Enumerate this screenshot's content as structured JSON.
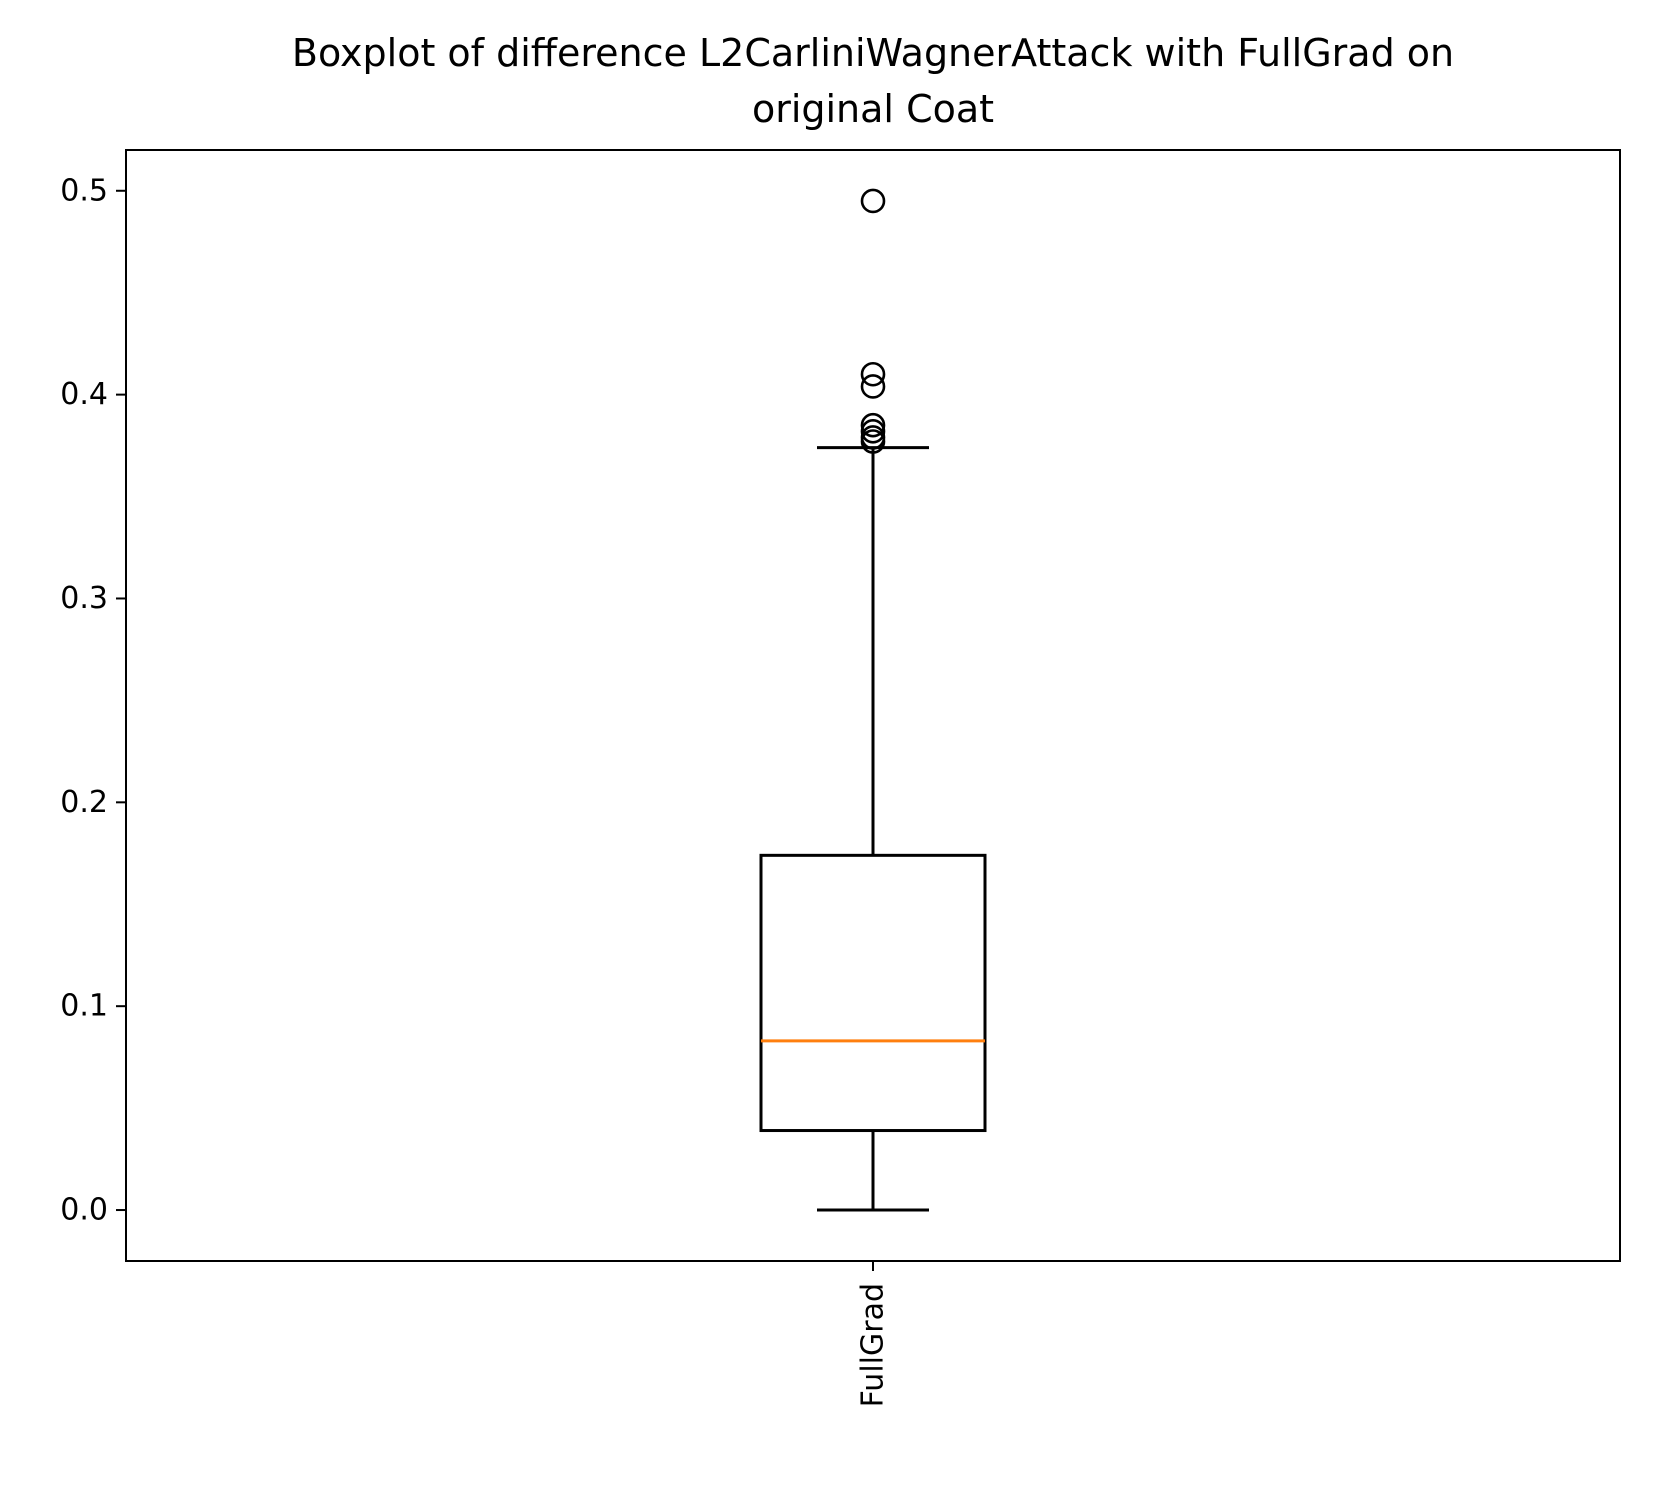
{
  "chart_data": {
    "type": "boxplot",
    "title": "Boxplot of difference L2CarliniWagnerAttack with FullGrad on\noriginal Coat",
    "xlabel": "",
    "ylabel": "",
    "categories": [
      "FullGrad"
    ],
    "ylim": [
      -0.025,
      0.52
    ],
    "yticks": [
      0.0,
      0.1,
      0.2,
      0.3,
      0.4,
      0.5
    ],
    "ytick_labels": [
      "0.0",
      "0.1",
      "0.2",
      "0.3",
      "0.4",
      "0.5"
    ],
    "grid": false,
    "boxes": [
      {
        "label": "FullGrad",
        "whisker_low": 0.0,
        "q1": 0.039,
        "median": 0.083,
        "q3": 0.174,
        "whisker_high": 0.374,
        "outliers": [
          0.377,
          0.379,
          0.382,
          0.385,
          0.404,
          0.41,
          0.495
        ]
      }
    ],
    "colors": {
      "box": "#000000",
      "median": "#ff7f0e",
      "outlier": "#000000"
    }
  }
}
